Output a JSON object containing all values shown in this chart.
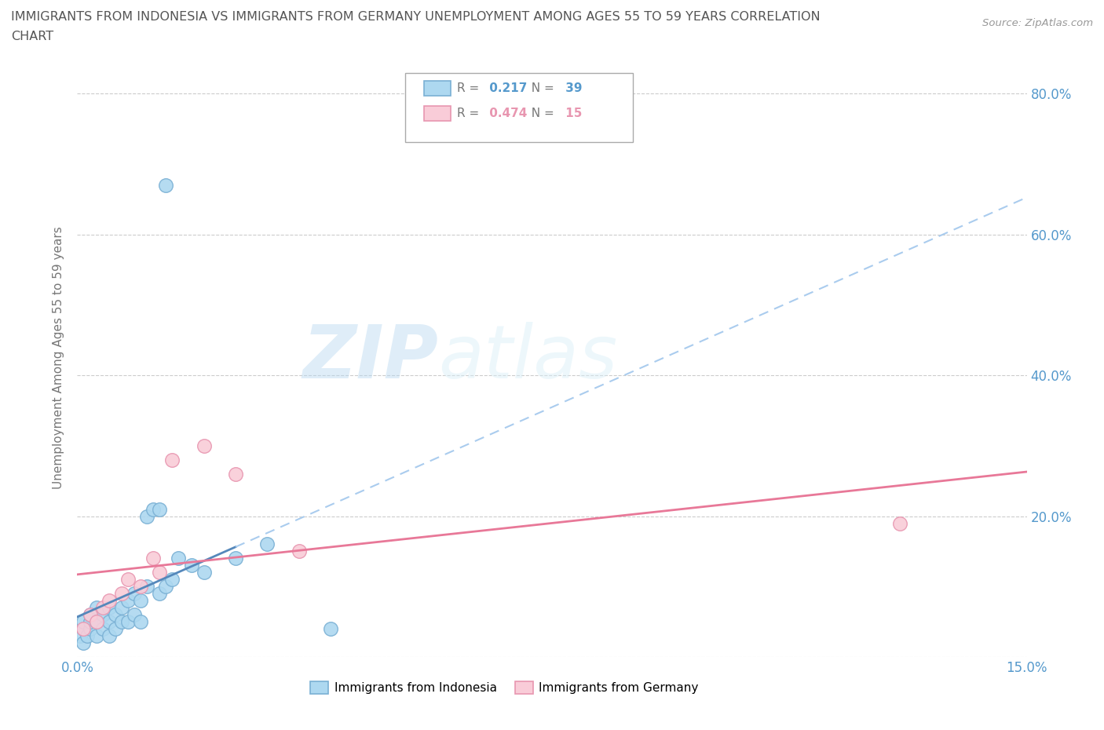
{
  "title_line1": "IMMIGRANTS FROM INDONESIA VS IMMIGRANTS FROM GERMANY UNEMPLOYMENT AMONG AGES 55 TO 59 YEARS CORRELATION",
  "title_line2": "CHART",
  "source": "Source: ZipAtlas.com",
  "ylabel": "Unemployment Among Ages 55 to 59 years",
  "xlim": [
    0.0,
    0.15
  ],
  "ylim": [
    0.0,
    0.85
  ],
  "ytick_vals": [
    0.0,
    0.2,
    0.4,
    0.6,
    0.8
  ],
  "ytick_labels": [
    "",
    "20.0%",
    "40.0%",
    "60.0%",
    "80.0%"
  ],
  "xtick_vals": [
    0.0,
    0.15
  ],
  "xtick_labels": [
    "0.0%",
    "15.0%"
  ],
  "watermark_zip": "ZIP",
  "watermark_atlas": "atlas",
  "indonesia_color": "#add8f0",
  "indonesia_edge": "#7ab0d4",
  "germany_color": "#f9ccd8",
  "germany_edge": "#e896b0",
  "indonesia_line_color": "#5588bb",
  "indonesia_line_color2": "#aaccee",
  "germany_line_color": "#e87898",
  "legend_R_indonesia": "0.217",
  "legend_N_indonesia": "39",
  "legend_R_germany": "0.474",
  "legend_N_germany": "15",
  "tick_color": "#5599cc",
  "ylabel_color": "#777777",
  "title_color": "#555555",
  "source_color": "#999999",
  "indonesia_x": [
    0.0005,
    0.001,
    0.001,
    0.001,
    0.0015,
    0.002,
    0.002,
    0.002,
    0.003,
    0.003,
    0.003,
    0.004,
    0.004,
    0.005,
    0.005,
    0.005,
    0.006,
    0.006,
    0.007,
    0.007,
    0.008,
    0.008,
    0.009,
    0.009,
    0.01,
    0.01,
    0.011,
    0.011,
    0.012,
    0.013,
    0.013,
    0.014,
    0.015,
    0.016,
    0.018,
    0.02,
    0.025,
    0.03,
    0.04
  ],
  "indonesia_y": [
    0.03,
    0.02,
    0.04,
    0.05,
    0.03,
    0.04,
    0.05,
    0.06,
    0.03,
    0.05,
    0.07,
    0.04,
    0.06,
    0.03,
    0.05,
    0.07,
    0.04,
    0.06,
    0.05,
    0.07,
    0.05,
    0.08,
    0.06,
    0.09,
    0.05,
    0.08,
    0.1,
    0.2,
    0.21,
    0.09,
    0.21,
    0.1,
    0.11,
    0.14,
    0.13,
    0.12,
    0.14,
    0.16,
    0.04
  ],
  "indonesia_outlier_x": [
    0.014
  ],
  "indonesia_outlier_y": [
    0.67
  ],
  "germany_x": [
    0.001,
    0.002,
    0.003,
    0.004,
    0.005,
    0.007,
    0.008,
    0.01,
    0.012,
    0.013,
    0.015,
    0.02,
    0.025,
    0.035,
    0.13
  ],
  "germany_y": [
    0.04,
    0.06,
    0.05,
    0.07,
    0.08,
    0.09,
    0.11,
    0.1,
    0.14,
    0.12,
    0.28,
    0.3,
    0.26,
    0.15,
    0.19
  ]
}
